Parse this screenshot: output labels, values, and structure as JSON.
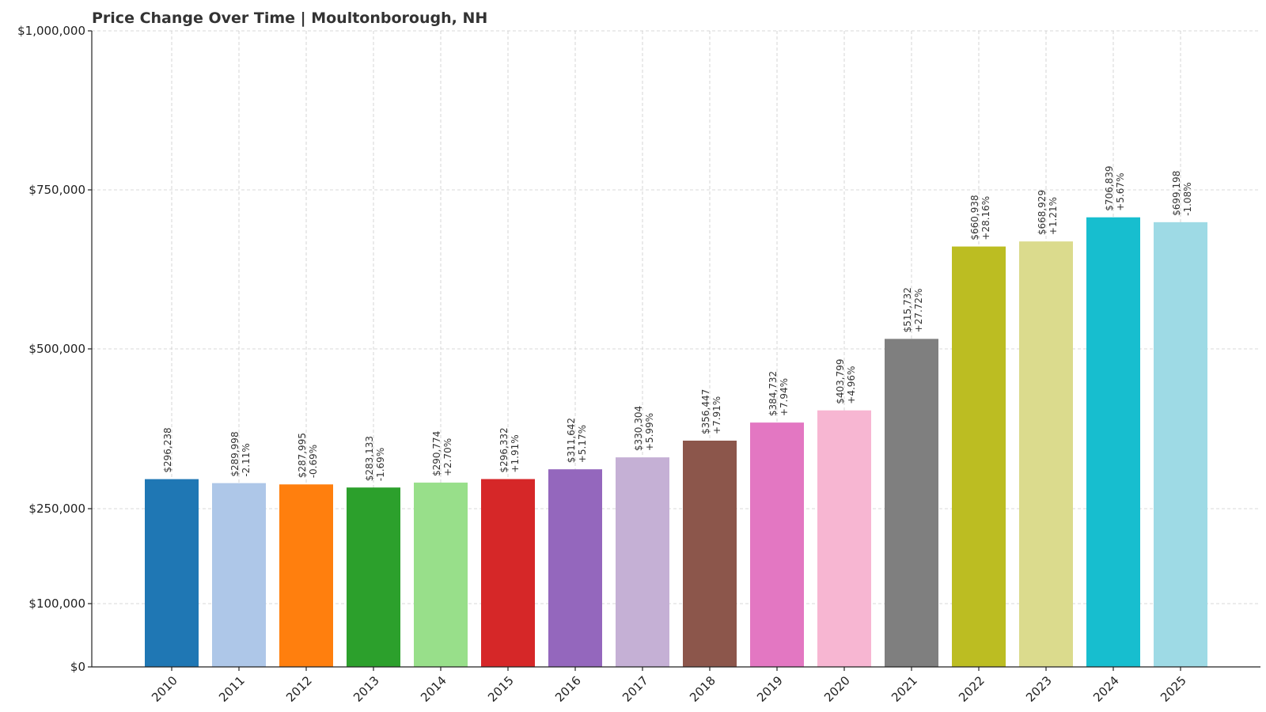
{
  "chart_data": {
    "type": "bar",
    "title": "Price Change Over Time | Moultonborough, NH",
    "xlabel": "",
    "ylabel": "",
    "ylim": [
      0,
      1000000
    ],
    "y_ticks": [
      {
        "value": 0,
        "label": "$0"
      },
      {
        "value": 100000,
        "label": "$100,000"
      },
      {
        "value": 250000,
        "label": "$250,000"
      },
      {
        "value": 500000,
        "label": "$500,000"
      },
      {
        "value": 750000,
        "label": "$750,000"
      },
      {
        "value": 1000000,
        "label": "$1,000,000"
      }
    ],
    "grid": true,
    "categories": [
      "2010",
      "2011",
      "2012",
      "2013",
      "2014",
      "2015",
      "2016",
      "2017",
      "2018",
      "2019",
      "2020",
      "2021",
      "2022",
      "2023",
      "2024",
      "2025"
    ],
    "values": [
      296238,
      289998,
      287995,
      283133,
      290774,
      296332,
      311642,
      330304,
      356447,
      384732,
      403799,
      515732,
      660938,
      668929,
      706839,
      699198
    ],
    "value_labels": [
      "$296,238",
      "$289,998",
      "$287,995",
      "$283,133",
      "$290,774",
      "$296,332",
      "$311,642",
      "$330,304",
      "$356,447",
      "$384,732",
      "$403,799",
      "$515,732",
      "$660,938",
      "$668,929",
      "$706,839",
      "$699,198"
    ],
    "change_labels": [
      "",
      "-2.11%",
      "-0.69%",
      "-1.69%",
      "+2.70%",
      "+1.91%",
      "+5.17%",
      "+5.99%",
      "+7.91%",
      "+7.94%",
      "+4.96%",
      "+27.72%",
      "+28.16%",
      "+1.21%",
      "+5.67%",
      "-1.08%"
    ],
    "colors": [
      "#1f77b4",
      "#aec7e8",
      "#ff7f0e",
      "#2ca02c",
      "#98df8a",
      "#d62728",
      "#9467bd",
      "#c5b0d5",
      "#8c564b",
      "#e377c2",
      "#f7b6d2",
      "#7f7f7f",
      "#bcbd22",
      "#dbdb8d",
      "#17becf",
      "#9edae5"
    ]
  }
}
